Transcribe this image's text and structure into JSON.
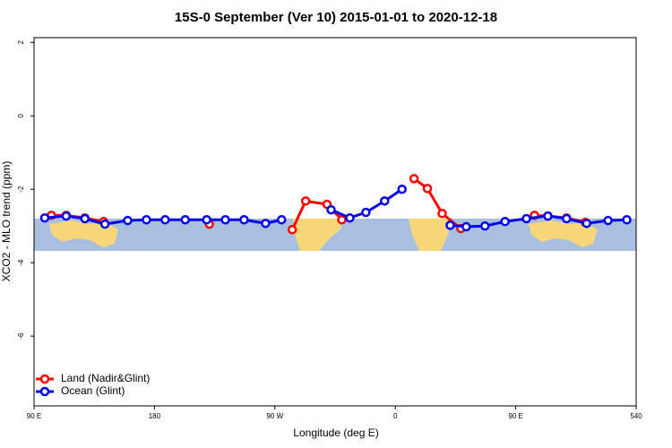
{
  "chart_data": {
    "type": "line",
    "title": "15S-0 September (Ver 10)   2015-01-01 to 2020-12-18",
    "x_label": "Longitude (deg E)",
    "y_label": "XCO2 - MLO trend (ppm)",
    "xlim": [
      90,
      540
    ],
    "xticks": [
      {
        "value": 90,
        "label": "90 E"
      },
      180,
      {
        "value": 270,
        "label": "90 W"
      },
      {
        "value": 360,
        "label": "0"
      },
      {
        "value": 450,
        "label": "90 E"
      },
      540
    ],
    "ylim": [
      -7.9,
      2.13
    ],
    "yticks": [
      2,
      0,
      -2,
      -4,
      -6
    ],
    "legend": "bottom-left",
    "series": [
      {
        "name": "Land (Nadir&Glint)",
        "color": "#ff0000",
        "x": [
          103,
          114,
          128,
          142,
          180,
          221,
          250,
          283,
          293,
          309,
          320,
          345,
          374,
          384,
          395,
          409,
          435,
          464,
          474,
          488,
          502
        ],
        "values": [
          -2.71,
          -2.71,
          -2.78,
          -2.88,
          null,
          -2.95,
          null,
          -3.1,
          -2.32,
          -2.41,
          -2.83,
          null,
          -1.71,
          -1.98,
          -2.66,
          -3.07,
          null,
          -2.71,
          -2.73,
          -2.78,
          -2.9
        ]
      },
      {
        "name": "Ocean (Glint)",
        "color": "#0000ee",
        "x": [
          98,
          114,
          128,
          143,
          160,
          174,
          188,
          203,
          219,
          233,
          247,
          263,
          275,
          295,
          312,
          326,
          338,
          352,
          365,
          385,
          401,
          413,
          427,
          442,
          458,
          474,
          488,
          503,
          519,
          533
        ],
        "values": [
          -2.78,
          -2.73,
          -2.8,
          -2.95,
          -2.85,
          -2.83,
          -2.83,
          -2.83,
          -2.83,
          -2.83,
          -2.83,
          -2.93,
          -2.83,
          null,
          -2.56,
          -2.78,
          -2.63,
          -2.32,
          -2.0,
          null,
          -2.98,
          -3.02,
          -3.0,
          -2.88,
          -2.8,
          -2.73,
          -2.8,
          -2.93,
          -2.85,
          -2.83
        ]
      }
    ]
  }
}
